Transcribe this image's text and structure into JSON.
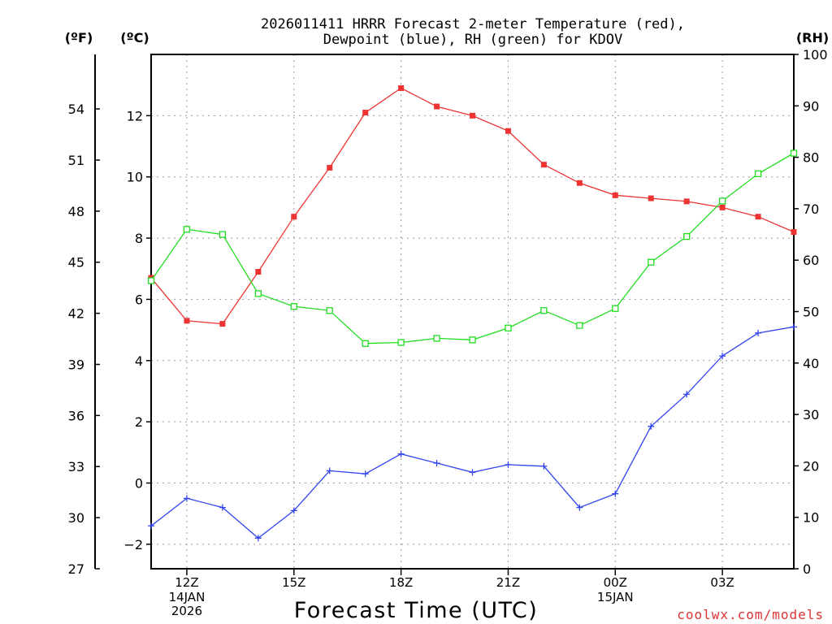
{
  "chart_data": {
    "type": "line",
    "title": [
      "2026011411 HRRR Forecast 2-meter Temperature (red),",
      "Dewpoint (blue), RH (green) for KDOV"
    ],
    "xlabel": "Forecast Time (UTC)",
    "credit": "coolwx.com/models",
    "units": {
      "left_outer": "(ºF)",
      "left_inner": "(ºC)",
      "right": "(RH)"
    },
    "x_hours": [
      11,
      12,
      13,
      14,
      15,
      16,
      17,
      18,
      19,
      20,
      21,
      22,
      23,
      24,
      25,
      26,
      27,
      28,
      29
    ],
    "xlim": [
      11,
      29
    ],
    "x_ticks": [
      {
        "h": 12,
        "label": "12Z",
        "sub": [
          "14JAN",
          "2026"
        ]
      },
      {
        "h": 15,
        "label": "15Z",
        "sub": []
      },
      {
        "h": 18,
        "label": "18Z",
        "sub": []
      },
      {
        "h": 21,
        "label": "21Z",
        "sub": []
      },
      {
        "h": 24,
        "label": "00Z",
        "sub": [
          "15JAN"
        ]
      },
      {
        "h": 27,
        "label": "03Z",
        "sub": []
      }
    ],
    "celsius_axis": {
      "ylim": [
        -2.8,
        14.0
      ],
      "ticks": [
        -2,
        0,
        2,
        4,
        6,
        8,
        10,
        12
      ]
    },
    "fahrenheit_axis": {
      "ylim": [
        27,
        57.2
      ],
      "ticks": [
        27,
        30,
        33,
        36,
        39,
        42,
        45,
        48,
        51,
        54
      ]
    },
    "rh_axis": {
      "ylim": [
        0,
        100
      ],
      "ticks": [
        0,
        10,
        20,
        30,
        40,
        50,
        60,
        70,
        80,
        90,
        100
      ]
    },
    "series": [
      {
        "name": "Temperature",
        "axis": "celsius",
        "color": "#ee3333",
        "marker": "filled-square",
        "values": [
          6.7,
          5.3,
          5.2,
          6.9,
          8.7,
          10.3,
          12.1,
          12.9,
          12.3,
          12.0,
          11.5,
          10.4,
          9.8,
          9.4,
          9.3,
          9.2,
          9.0,
          8.7,
          8.2
        ]
      },
      {
        "name": "Dewpoint",
        "axis": "celsius",
        "color": "#3344ee",
        "marker": "plus",
        "values": [
          -1.4,
          -0.5,
          -0.8,
          -1.8,
          -0.9,
          0.4,
          0.3,
          0.95,
          0.65,
          0.35,
          0.6,
          0.55,
          -0.8,
          -0.35,
          1.85,
          2.9,
          4.15,
          4.9,
          5.1
        ]
      },
      {
        "name": "RH",
        "axis": "rh",
        "color": "#22dd22",
        "marker": "open-square",
        "values": [
          56,
          66,
          65,
          53.5,
          51,
          50.2,
          43.8,
          44,
          44.8,
          44.5,
          46.8,
          50.2,
          47.3,
          50.6,
          59.6,
          64.6,
          71.5,
          76.8,
          80.8
        ]
      }
    ]
  }
}
